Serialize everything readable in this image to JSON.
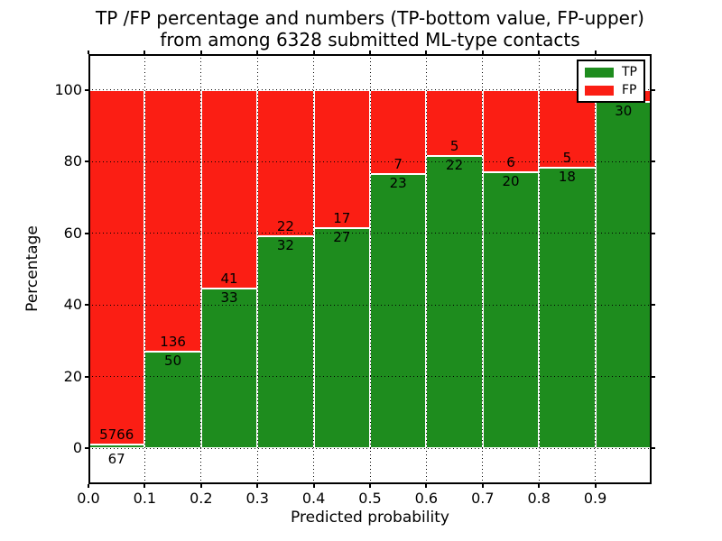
{
  "chart_data": {
    "type": "bar",
    "stacked": true,
    "normalized_to_percent": true,
    "title_line1": "TP /FP percentage and numbers (TP-bottom value, FP-upper)",
    "title_line2": "from among 6328 submitted ML-type contacts",
    "total_submitted": 6328,
    "xlabel": "Predicted probability",
    "ylabel": "Percentage",
    "xlim": [
      0.0,
      1.0
    ],
    "ylim": [
      -10,
      110
    ],
    "bin_width": 0.1,
    "grid": "dotted",
    "categories": [
      "0.0-0.1",
      "0.1-0.2",
      "0.2-0.3",
      "0.3-0.4",
      "0.4-0.5",
      "0.5-0.6",
      "0.6-0.7",
      "0.7-0.8",
      "0.8-0.9",
      "0.9-1.0"
    ],
    "x_tick_labels": [
      "0.0",
      "0.1",
      "0.2",
      "0.3",
      "0.4",
      "0.5",
      "0.6",
      "0.7",
      "0.8",
      "0.9"
    ],
    "y_ticks": [
      0,
      20,
      40,
      60,
      80,
      100
    ],
    "series": [
      {
        "name": "TP",
        "color": "#1e8c1e",
        "values": [
          67,
          50,
          33,
          32,
          27,
          23,
          22,
          20,
          18,
          30
        ]
      },
      {
        "name": "FP",
        "color": "#fb1e14",
        "values": [
          5766,
          136,
          41,
          22,
          17,
          7,
          5,
          6,
          5,
          1
        ]
      }
    ],
    "bar_value_labels": {
      "tp": [
        "67",
        "50",
        "33",
        "32",
        "27",
        "23",
        "22",
        "20",
        "18",
        "30"
      ],
      "fp": [
        "5766",
        "136",
        "41",
        "22",
        "17",
        "7",
        "5",
        "6",
        "5",
        ""
      ]
    },
    "legend": {
      "position": "upper right",
      "entries": [
        {
          "label": "TP",
          "color": "#1e8c1e"
        },
        {
          "label": "FP",
          "color": "#fb1e14"
        }
      ]
    },
    "axis_color": "#000000",
    "bar_edge_color": "#ffffff"
  }
}
